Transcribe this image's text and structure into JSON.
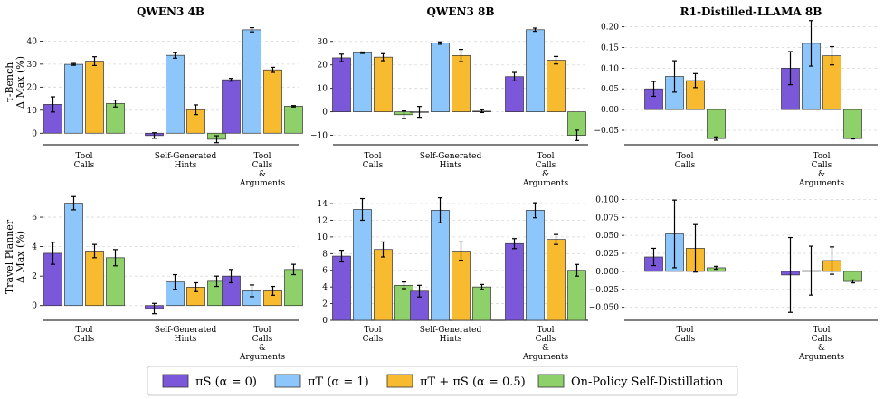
{
  "figure": {
    "row_labels": [
      [
        "τ-Bench",
        "Δ Max (%)"
      ],
      [
        "Travel Planner",
        "Δ Max (%)"
      ]
    ]
  },
  "legend": [
    {
      "label": "πS (α = 0)",
      "color": "#7b57d9"
    },
    {
      "label": "πT (α = 1)",
      "color": "#8dc6fa"
    },
    {
      "label": "πT + πS (α = 0.5)",
      "color": "#f8bb2f"
    },
    {
      "label": "On-Policy Self-Distillation",
      "color": "#8ed06a"
    }
  ],
  "chart_data": [
    {
      "type": "bar",
      "title": "QWEN3 4B",
      "benchmark": "τ-Bench",
      "categories": [
        [
          "Tool",
          "Calls"
        ],
        [
          "Self-Generated",
          "Hints"
        ],
        [
          "Tool",
          "Calls",
          "&",
          "Arguments"
        ]
      ],
      "ylim": [
        -5,
        48
      ],
      "yticks": [
        0,
        10,
        20,
        30,
        40
      ],
      "tick_labels": [
        "0",
        "10",
        "20",
        "30",
        "40"
      ],
      "series": [
        {
          "name": "πS (α = 0)",
          "values": [
            12.5,
            -1,
            23.2
          ],
          "errors": [
            3.3,
            1.2,
            0.6
          ]
        },
        {
          "name": "πT (α = 1)",
          "values": [
            29.9,
            33.8,
            44.9
          ],
          "errors": [
            0.4,
            1.2,
            0.9
          ]
        },
        {
          "name": "πT + πS (α = 0.5)",
          "values": [
            31.3,
            10.2,
            27.5
          ],
          "errors": [
            1.9,
            2.1,
            1.1
          ]
        },
        {
          "name": "On-Policy Self-Distillation",
          "values": [
            12.9,
            -2.6,
            11.7
          ],
          "errors": [
            1.5,
            1.5,
            0.3
          ]
        }
      ]
    },
    {
      "type": "bar",
      "title": "QWEN3 8B",
      "benchmark": "τ-Bench",
      "categories": [
        [
          "Tool",
          "Calls"
        ],
        [
          "Self-Generated",
          "Hints"
        ],
        [
          "Tool",
          "Calls",
          "&",
          "Arguments"
        ]
      ],
      "ylim": [
        -14,
        38
      ],
      "yticks": [
        -10,
        0,
        10,
        20,
        30
      ],
      "tick_labels": [
        "−10",
        "0",
        "10",
        "20",
        "30"
      ],
      "series": [
        {
          "name": "πS (α = 0)",
          "values": [
            23,
            0,
            15
          ],
          "errors": [
            1.6,
            2.3,
            1.8
          ]
        },
        {
          "name": "πT (α = 1)",
          "values": [
            25.2,
            29.3,
            35
          ],
          "errors": [
            0.3,
            0.5,
            0.7
          ]
        },
        {
          "name": "πT + πS (α = 0.5)",
          "values": [
            23.3,
            24,
            22
          ],
          "errors": [
            1.5,
            2.6,
            1.6
          ]
        },
        {
          "name": "On-Policy Self-Distillation",
          "values": [
            -1.2,
            0.3,
            -10
          ],
          "errors": [
            1.6,
            0.6,
            2.2
          ]
        }
      ]
    },
    {
      "type": "bar",
      "title": "R1-Distilled-LLAMA 8B",
      "benchmark": "τ-Bench",
      "categories": [
        [
          "Tool",
          "Calls"
        ],
        [
          "Tool",
          "Calls",
          "&",
          "Arguments"
        ]
      ],
      "ylim": [
        -0.085,
        0.21
      ],
      "yticks": [
        -0.05,
        0,
        0.05,
        0.1,
        0.15,
        0.2
      ],
      "tick_labels": [
        "−0.05",
        "0.00",
        "0.05",
        "0.10",
        "0.15",
        "0.20"
      ],
      "series": [
        {
          "name": "πS (α = 0)",
          "values": [
            0.05,
            0.1
          ],
          "errors": [
            0.018,
            0.04
          ]
        },
        {
          "name": "πT (α = 1)",
          "values": [
            0.08,
            0.16
          ],
          "errors": [
            0.038,
            0.055
          ]
        },
        {
          "name": "πT + πS (α = 0.5)",
          "values": [
            0.07,
            0.13
          ],
          "errors": [
            0.017,
            0.022
          ]
        },
        {
          "name": "On-Policy Self-Distillation",
          "values": [
            -0.07,
            -0.07
          ],
          "errors": [
            0.004,
            0.001
          ]
        }
      ]
    },
    {
      "type": "bar",
      "title": "",
      "benchmark": "Travel Planner",
      "model": "QWEN3 4B",
      "categories": [
        [
          "Tool",
          "Calls"
        ],
        [
          "Self-Generated",
          "Hints"
        ],
        [
          "Tool",
          "Calls",
          "&",
          "Arguments"
        ]
      ],
      "ylim": [
        -1.0,
        7.6
      ],
      "yticks": [
        0,
        2,
        4,
        6
      ],
      "tick_labels": [
        "0",
        "2",
        "4",
        "6"
      ],
      "series": [
        {
          "name": "πS (α = 0)",
          "values": [
            3.55,
            -0.2,
            2.0
          ],
          "errors": [
            0.75,
            0.35,
            0.45
          ]
        },
        {
          "name": "πT (α = 1)",
          "values": [
            6.95,
            1.6,
            1.0
          ],
          "errors": [
            0.45,
            0.5,
            0.4
          ]
        },
        {
          "name": "πT + πS (α = 0.5)",
          "values": [
            3.7,
            1.25,
            1.0
          ],
          "errors": [
            0.45,
            0.3,
            0.3
          ]
        },
        {
          "name": "On-Policy Self-Distillation",
          "values": [
            3.25,
            1.65,
            2.45
          ],
          "errors": [
            0.55,
            0.35,
            0.35
          ]
        }
      ]
    },
    {
      "type": "bar",
      "title": "",
      "benchmark": "Travel Planner",
      "model": "QWEN3 8B",
      "categories": [
        [
          "Tool",
          "Calls"
        ],
        [
          "Self-Generated",
          "Hints"
        ],
        [
          "Tool",
          "Calls",
          "&",
          "Arguments"
        ]
      ],
      "ylim": [
        0,
        15.2
      ],
      "yticks": [
        0,
        2,
        4,
        6,
        8,
        10,
        12,
        14
      ],
      "tick_labels": [
        "0",
        "2",
        "4",
        "6",
        "8",
        "10",
        "12",
        "14"
      ],
      "series": [
        {
          "name": "πS (α = 0)",
          "values": [
            7.7,
            3.5,
            9.2
          ],
          "errors": [
            0.7,
            0.7,
            0.6
          ]
        },
        {
          "name": "πT (α = 1)",
          "values": [
            13.3,
            13.2,
            13.2
          ],
          "errors": [
            1.3,
            1.5,
            0.9
          ]
        },
        {
          "name": "πT + πS (α = 0.5)",
          "values": [
            8.5,
            8.3,
            9.7
          ],
          "errors": [
            0.9,
            1.1,
            0.6
          ]
        },
        {
          "name": "On-Policy Self-Distillation",
          "values": [
            4.2,
            4.0,
            6.0
          ],
          "errors": [
            0.4,
            0.3,
            0.7
          ]
        }
      ]
    },
    {
      "type": "bar",
      "title": "",
      "benchmark": "Travel Planner",
      "model": "R1-Distilled-LLAMA 8B",
      "categories": [
        [
          "Tool",
          "Calls"
        ],
        [
          "Tool",
          "Calls",
          "&",
          "Arguments"
        ]
      ],
      "ylim": [
        -0.068,
        0.108
      ],
      "yticks": [
        -0.05,
        -0.025,
        0,
        0.025,
        0.05,
        0.075,
        0.1
      ],
      "tick_labels": [
        "−0.050",
        "−0.025",
        "0.000",
        "0.025",
        "0.050",
        "0.075",
        "0.100"
      ],
      "series": [
        {
          "name": "πS (α = 0)",
          "values": [
            0.02,
            -0.005
          ],
          "errors": [
            0.012,
            0.052
          ]
        },
        {
          "name": "πT (α = 1)",
          "values": [
            0.052,
            0.001
          ],
          "errors": [
            0.047,
            0.034
          ]
        },
        {
          "name": "πT + πS (α = 0.5)",
          "values": [
            0.032,
            0.015
          ],
          "errors": [
            0.033,
            0.019
          ]
        },
        {
          "name": "On-Policy Self-Distillation",
          "values": [
            0.005,
            -0.014
          ],
          "errors": [
            0.002,
            0.002
          ]
        }
      ]
    }
  ]
}
